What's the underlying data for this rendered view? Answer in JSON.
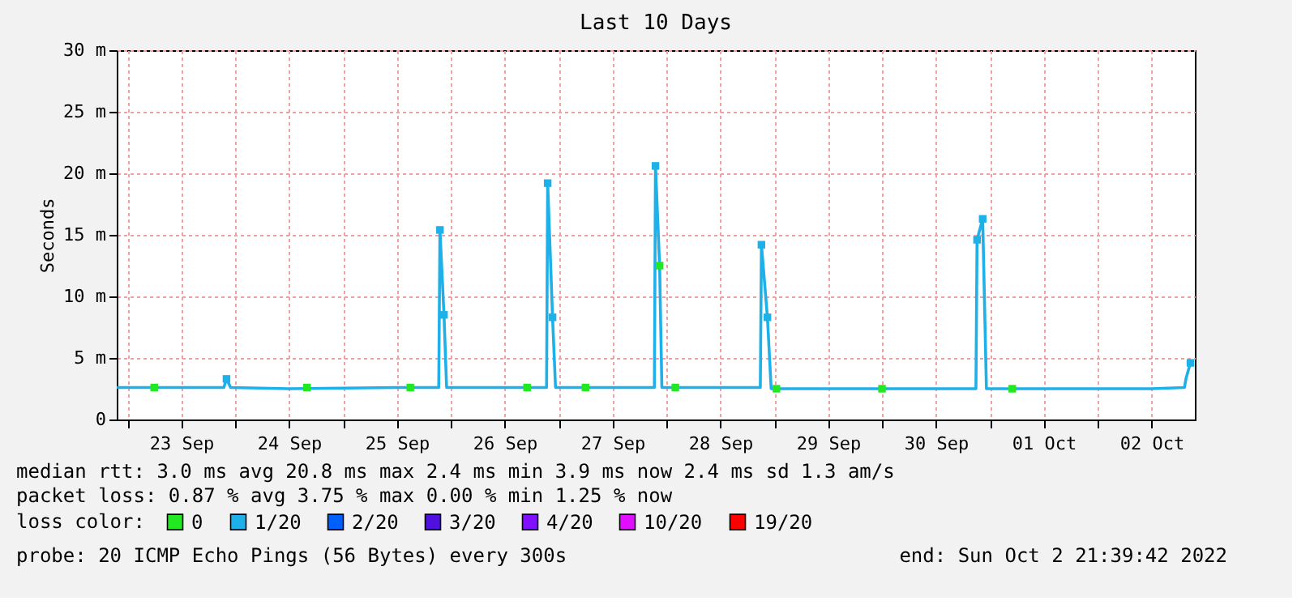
{
  "chart_data": {
    "type": "line",
    "title": "Last 10 Days",
    "ylabel": "Seconds",
    "xlim": [
      "2022-09-22T21:39",
      "2022-10-02T21:39"
    ],
    "xticks": [
      {
        "value": "2022-09-23T00:00",
        "label": null
      },
      {
        "value": "2022-09-23T12:00",
        "label": "23 Sep"
      },
      {
        "value": "2022-09-24T00:00",
        "label": null
      },
      {
        "value": "2022-09-24T12:00",
        "label": "24 Sep"
      },
      {
        "value": "2022-09-25T00:00",
        "label": null
      },
      {
        "value": "2022-09-25T12:00",
        "label": "25 Sep"
      },
      {
        "value": "2022-09-26T00:00",
        "label": null
      },
      {
        "value": "2022-09-26T12:00",
        "label": "26 Sep"
      },
      {
        "value": "2022-09-27T00:00",
        "label": null
      },
      {
        "value": "2022-09-27T12:00",
        "label": "27 Sep"
      },
      {
        "value": "2022-09-28T00:00",
        "label": null
      },
      {
        "value": "2022-09-28T12:00",
        "label": "28 Sep"
      },
      {
        "value": "2022-09-29T00:00",
        "label": null
      },
      {
        "value": "2022-09-29T12:00",
        "label": "29 Sep"
      },
      {
        "value": "2022-09-30T00:00",
        "label": null
      },
      {
        "value": "2022-09-30T12:00",
        "label": "30 Sep"
      },
      {
        "value": "2022-10-01T00:00",
        "label": null
      },
      {
        "value": "2022-10-01T12:00",
        "label": "01 Oct"
      },
      {
        "value": "2022-10-02T00:00",
        "label": null
      },
      {
        "value": "2022-10-02T12:00",
        "label": "02 Oct"
      }
    ],
    "ylim": [
      0,
      30
    ],
    "yticks": [
      0,
      {
        "value": 5,
        "label": "5 m"
      },
      {
        "value": 10,
        "label": "10 m"
      },
      {
        "value": 15,
        "label": "15 m"
      },
      {
        "value": 20,
        "label": "20 m"
      },
      {
        "value": 25,
        "label": "25 m"
      },
      {
        "value": 30,
        "label": "30 m"
      }
    ],
    "grid": true,
    "legend": "bottom",
    "legend_title": "loss color:",
    "series": [
      {
        "type": "line",
        "color": "#1eb0e8",
        "marker": "none",
        "line_style": "solid",
        "x": [
          "2022-09-22T21:40",
          "2022-09-23T12:00",
          "2022-09-23T21:30",
          "2022-09-23T22:05",
          "2022-09-23T23:00",
          "2022-09-24T12:00",
          "2022-09-25T12:00",
          "2022-09-25T21:20",
          "2022-09-25T21:36",
          "2022-09-25T22:30",
          "2022-09-25T23:05",
          "2022-09-26T12:00",
          "2022-09-26T21:20",
          "2022-09-26T21:35",
          "2022-09-26T22:40",
          "2022-09-26T23:20",
          "2022-09-27T12:00",
          "2022-09-27T21:20",
          "2022-09-27T21:35",
          "2022-09-27T22:30",
          "2022-09-27T23:00",
          "2022-09-28T12:00",
          "2022-09-28T20:55",
          "2022-09-28T21:10",
          "2022-09-28T22:30",
          "2022-09-28T23:20",
          "2022-09-29T12:00",
          "2022-09-30T12:00",
          "2022-09-30T20:55",
          "2022-09-30T21:10",
          "2022-09-30T22:25",
          "2022-09-30T23:15",
          "2022-10-01T12:00",
          "2022-10-02T12:00",
          "2022-10-02T19:20",
          "2022-10-02T19:40",
          "2022-10-02T20:40"
        ],
        "values": [
          2.6,
          2.6,
          2.6,
          3.3,
          2.6,
          2.5,
          2.6,
          2.6,
          15.4,
          8.5,
          2.6,
          2.6,
          2.6,
          19.2,
          8.3,
          2.6,
          2.6,
          2.6,
          20.6,
          12.5,
          2.6,
          2.6,
          2.6,
          14.2,
          8.3,
          2.5,
          2.5,
          2.5,
          2.5,
          14.6,
          16.3,
          2.5,
          2.5,
          2.5,
          2.6,
          3.3,
          4.6
        ]
      },
      {
        "type": "scatter",
        "name": "0",
        "color": "#22e822",
        "marker": "square",
        "x": [
          "2022-09-23T06:00",
          "2022-09-24T16:00",
          "2022-09-25T15:00",
          "2022-09-26T17:00",
          "2022-09-27T06:00",
          "2022-09-27T22:30",
          "2022-09-28T02:00",
          "2022-09-29T00:30",
          "2022-09-30T00:00",
          "2022-10-01T05:00"
        ],
        "values": [
          2.6,
          2.6,
          2.6,
          2.6,
          2.6,
          12.5,
          2.6,
          2.5,
          2.5,
          2.5
        ]
      },
      {
        "type": "scatter",
        "name": "1/20",
        "color": "#1eb0e8",
        "marker": "square",
        "x": [
          "2022-09-23T22:05",
          "2022-09-25T21:36",
          "2022-09-25T22:30",
          "2022-09-26T21:35",
          "2022-09-26T22:40",
          "2022-09-27T21:35",
          "2022-09-28T21:10",
          "2022-09-28T22:30",
          "2022-09-30T21:10",
          "2022-09-30T22:25",
          "2022-10-02T20:40"
        ],
        "values": [
          3.3,
          15.4,
          8.5,
          19.2,
          8.3,
          20.6,
          14.2,
          8.3,
          14.6,
          16.3,
          4.6
        ]
      },
      {
        "type": "scatter",
        "name": "2/20",
        "color": "#0060ff",
        "marker": "square"
      },
      {
        "type": "scatter",
        "name": "3/20",
        "color": "#5010e0",
        "marker": "square"
      },
      {
        "type": "scatter",
        "name": "4/20",
        "color": "#8010ff",
        "marker": "square"
      },
      {
        "type": "scatter",
        "name": "10/20",
        "color": "#e010ff",
        "marker": "square"
      },
      {
        "type": "scatter",
        "name": "19/20",
        "color": "#ff0000",
        "marker": "square"
      }
    ],
    "annotations": [
      "median rtt:  3.0 ms avg  20.8 ms max  2.4 ms min  3.9 ms now  2.4 ms sd  1.3   am/s",
      "packet loss: 0.87 % avg  3.75 % max  0.00 % min  1.25 % now",
      "probe:       20 ICMP Echo Pings (56 Bytes) every 300s",
      "end: Sun Oct  2 21:39:42 2022"
    ]
  }
}
